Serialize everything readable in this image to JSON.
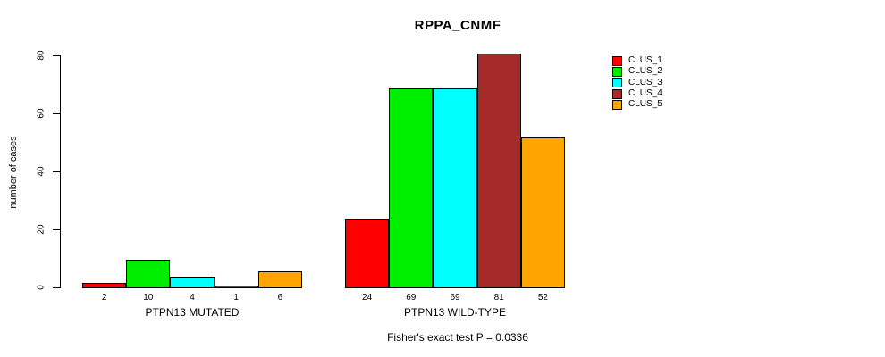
{
  "chart_data": {
    "type": "bar",
    "title": "RPPA_CNMF",
    "ylabel": "number of cases",
    "xlabel": "",
    "subtitle": "Fisher's exact test P = 0.0336",
    "ylim": [
      0,
      80
    ],
    "yticks": [
      0,
      20,
      40,
      60,
      80
    ],
    "grid": false,
    "legend_position": "right",
    "bar_value_labels_shown": true,
    "categories": [
      "PTPN13 MUTATED",
      "PTPN13 WILD-TYPE"
    ],
    "series": [
      {
        "name": "CLUS_1",
        "color": "#FF0000",
        "values": [
          2,
          24
        ]
      },
      {
        "name": "CLUS_2",
        "color": "#00EE00",
        "values": [
          10,
          69
        ]
      },
      {
        "name": "CLUS_3",
        "color": "#00FFFF",
        "values": [
          4,
          69
        ]
      },
      {
        "name": "CLUS_4",
        "color": "#A52A2A",
        "values": [
          1,
          81
        ]
      },
      {
        "name": "CLUS_5",
        "color": "#FFA500",
        "values": [
          6,
          52
        ]
      }
    ],
    "colors": {
      "axis": "#000000",
      "text": "#000000",
      "background": "#FFFFFF"
    }
  }
}
